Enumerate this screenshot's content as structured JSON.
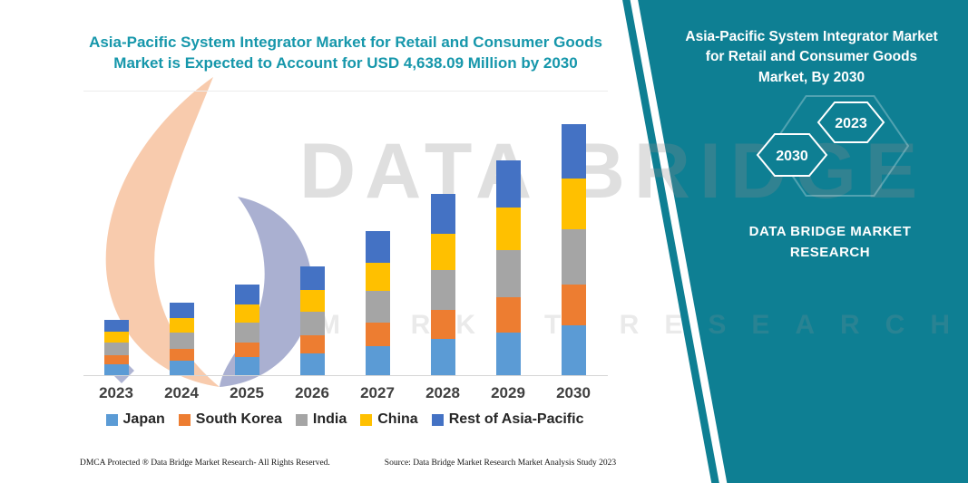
{
  "title": {
    "line1": "Asia-Pacific System Integrator Market for Retail and Consumer Goods",
    "line2": "Market is Expected to Account for USD 4,638.09 Million by 2030"
  },
  "watermark": {
    "line1": "DATA BRIDGE",
    "line2": "MARKET RESEARCH"
  },
  "banner": {
    "color": "#0e7f93",
    "title_line1": "Asia-Pacific System Integrator Market",
    "title_line2": "for Retail and Consumer Goods",
    "title_line3": "Market, By 2030",
    "hexagons": [
      "2030",
      "2023"
    ],
    "brand_line1": "DATA BRIDGE MARKET",
    "brand_line2": "RESEARCH"
  },
  "footer": {
    "dmca": "DMCA Protected ® Data Bridge Market Research-  All Rights Reserved.",
    "source": "Source: Data Bridge Market Research  Market Analysis Study 2023"
  },
  "chart_data": {
    "type": "bar",
    "subtype": "stacked-vertical",
    "title": "Asia-Pacific System Integrator Market for Retail and Consumer Goods Market is Expected to Account for USD 4,638.09 Million by 2030",
    "unit": "USD Million",
    "categories": [
      "2023",
      "2024",
      "2025",
      "2026",
      "2027",
      "2028",
      "2029",
      "2030"
    ],
    "series": [
      {
        "name": "Japan",
        "color": "#5B9BD5",
        "values": [
          205,
          265,
          335,
          400,
          530,
          665,
          790,
          920
        ]
      },
      {
        "name": "South Korea",
        "color": "#ED7D31",
        "values": [
          170,
          220,
          275,
          330,
          435,
          545,
          645,
          755
        ]
      },
      {
        "name": "India",
        "color": "#A5A5A5",
        "values": [
          225,
          295,
          365,
          440,
          585,
          735,
          870,
          1020
        ]
      },
      {
        "name": "China",
        "color": "#FFC000",
        "values": [
          205,
          270,
          335,
          405,
          535,
          675,
          800,
          938
        ]
      },
      {
        "name": "Rest of Asia-Pacific",
        "color": "#4472C4",
        "values": [
          215,
          290,
          365,
          435,
          575,
          725,
          860,
          1005.09
        ]
      }
    ],
    "totals_note": "2030 total = 4638.09 USD Million (stated in title); other totals estimated from bar heights",
    "ylim": [
      0,
      4800
    ],
    "grid": false,
    "legend_position": "bottom",
    "xlabel": "",
    "ylabel": ""
  }
}
